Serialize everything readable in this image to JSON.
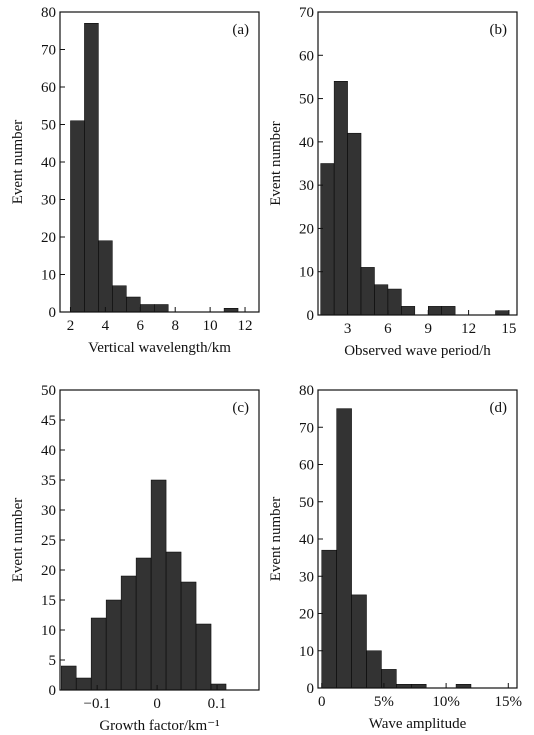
{
  "colors": {
    "bar": "#333333",
    "axis": "#111111",
    "background": "#ffffff"
  },
  "chart_data": [
    {
      "type": "bar",
      "panel_label": "(a)",
      "xlabel": "Vertical wavelength/km",
      "ylabel": "Event number",
      "xlim": [
        1.4,
        12.8
      ],
      "ylim": [
        0,
        80
      ],
      "xticks": [
        2,
        4,
        6,
        8,
        10,
        12
      ],
      "xtick_labels": [
        "2",
        "4",
        "6",
        "8",
        "10",
        "12"
      ],
      "yticks": [
        0,
        10,
        20,
        30,
        40,
        50,
        60,
        70,
        80
      ],
      "ytick_labels": [
        "0",
        "10",
        "20",
        "30",
        "40",
        "50",
        "60",
        "70",
        "80"
      ],
      "bin_width": 0.8,
      "bin_starts": [
        2.0,
        2.8,
        3.6,
        4.4,
        5.2,
        6.0,
        6.8,
        7.6,
        8.4,
        9.2,
        10.0,
        10.8,
        11.6
      ],
      "values": [
        51,
        77,
        19,
        7,
        4,
        2,
        2,
        0,
        0,
        0,
        0,
        1,
        0
      ]
    },
    {
      "type": "bar",
      "panel_label": "(b)",
      "xlabel": "Observed wave period/h",
      "ylabel": "Event number",
      "xlim": [
        0.8,
        15.6
      ],
      "ylim": [
        0,
        70
      ],
      "xticks": [
        3,
        6,
        9,
        12,
        15
      ],
      "xtick_labels": [
        "3",
        "6",
        "9",
        "12",
        "15"
      ],
      "yticks": [
        0,
        10,
        20,
        30,
        40,
        50,
        60,
        70
      ],
      "ytick_labels": [
        "0",
        "10",
        "20",
        "30",
        "40",
        "50",
        "60",
        "70"
      ],
      "bin_width": 1.0,
      "bin_starts": [
        1,
        2,
        3,
        4,
        5,
        6,
        7,
        8,
        9,
        10,
        11,
        12,
        13,
        14
      ],
      "values": [
        35,
        54,
        42,
        11,
        7,
        6,
        2,
        0,
        2,
        2,
        0,
        0,
        0,
        1
      ]
    },
    {
      "type": "bar",
      "panel_label": "(c)",
      "xlabel": "Growth factor/km⁻¹",
      "ylabel": "Event number",
      "xlim": [
        -0.162,
        0.17
      ],
      "ylim": [
        0,
        50
      ],
      "xticks": [
        -0.1,
        0,
        0.1
      ],
      "xtick_labels": [
        "−0.1",
        "0",
        "0.1"
      ],
      "yticks": [
        0,
        5,
        10,
        15,
        20,
        25,
        30,
        35,
        40,
        45,
        50
      ],
      "ytick_labels": [
        "0",
        "5",
        "10",
        "15",
        "20",
        "25",
        "30",
        "35",
        "40",
        "45",
        "50"
      ],
      "bin_width": 0.025,
      "bin_starts": [
        -0.16,
        -0.135,
        -0.11,
        -0.085,
        -0.06,
        -0.035,
        -0.01,
        0.015,
        0.04,
        0.065,
        0.09,
        0.115,
        0.14
      ],
      "values": [
        4,
        2,
        12,
        15,
        19,
        22,
        35,
        23,
        18,
        11,
        1,
        0,
        0
      ]
    },
    {
      "type": "bar",
      "panel_label": "(d)",
      "xlabel": "Wave amplitude",
      "ylabel": "Event number",
      "xlim": [
        -0.3,
        15.7
      ],
      "ylim": [
        0,
        80
      ],
      "xticks": [
        0,
        5,
        10,
        15
      ],
      "xtick_labels": [
        "0",
        "5%",
        "10%",
        "15%"
      ],
      "yticks": [
        0,
        10,
        20,
        30,
        40,
        50,
        60,
        70,
        80
      ],
      "ytick_labels": [
        "0",
        "10",
        "20",
        "30",
        "40",
        "50",
        "60",
        "70",
        "80"
      ],
      "bin_width": 1.2,
      "bin_starts": [
        0.0,
        1.2,
        2.4,
        3.6,
        4.8,
        6.0,
        7.2,
        8.4,
        9.6,
        10.8,
        12.0,
        13.2,
        14.4
      ],
      "values": [
        37,
        75,
        25,
        10,
        5,
        1,
        1,
        0,
        0,
        1,
        0,
        0,
        0
      ]
    }
  ]
}
